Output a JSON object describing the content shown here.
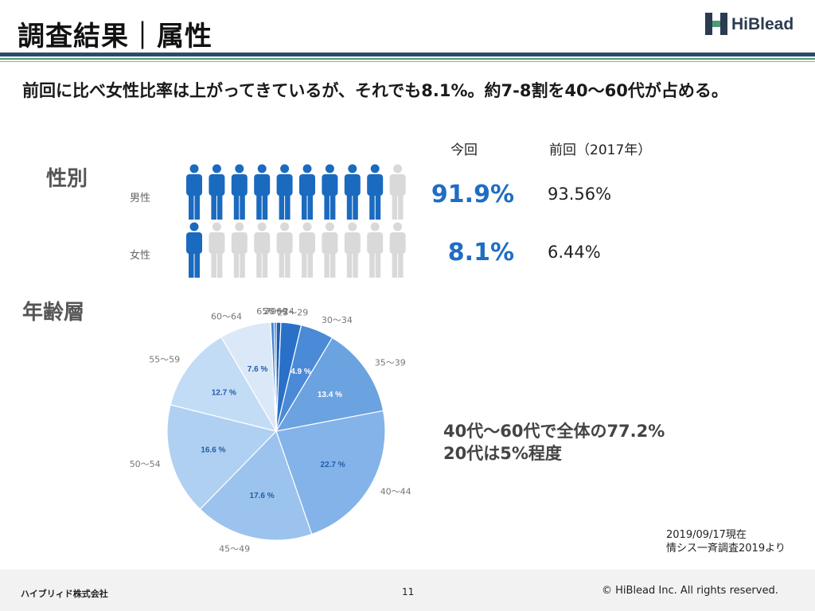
{
  "header": {
    "title": "調査結果｜属性",
    "logo_text": "HiBlead",
    "subtitle": "前回に比べ女性比率は上がってきているが、それでも8.1%。約7-8割を40〜60代が占める。"
  },
  "gender": {
    "section_label": "性別",
    "col_current": "今回",
    "col_previous": "前回（2017年）",
    "rows": [
      {
        "label": "男性",
        "current": "91.9%",
        "previous": "93.56%",
        "filled_icons": 9,
        "total_icons": 10
      },
      {
        "label": "女性",
        "current": "8.1%",
        "previous": "6.44%",
        "filled_icons": 1,
        "total_icons": 10
      }
    ]
  },
  "age": {
    "section_label": "年齢層",
    "callout_line1": "40代〜60代で全体の77.2%",
    "callout_line2": "20代は5%程度"
  },
  "chart_data": {
    "type": "pie",
    "categories": [
      "20〜24",
      "25〜29",
      "30〜34",
      "35〜39",
      "40〜44",
      "45〜49",
      "50〜54",
      "55〜59",
      "60〜64",
      "65〜69",
      "70〜"
    ],
    "values": [
      0.7,
      3.0,
      4.9,
      13.4,
      22.7,
      17.6,
      16.6,
      12.7,
      7.6,
      0.5,
      0.3
    ],
    "value_labels": [
      "",
      "",
      "4.9 %",
      "13.4 %",
      "22.7 %",
      "17.6 %",
      "16.6 %",
      "12.7 %",
      "7.6 %",
      "",
      ""
    ],
    "colors": [
      "#1a5fb4",
      "#2a70c8",
      "#4a8ad6",
      "#6ba2e0",
      "#83b3e8",
      "#9cc3ee",
      "#b0d0f2",
      "#c3dcf5",
      "#dbe8f8",
      "#3f80d0",
      "#1f63b8"
    ],
    "legend": "none"
  },
  "notes": {
    "date": "2019/09/17現在",
    "source": "情シス一斉調査2019より"
  },
  "footer": {
    "company": "ハイブリィド株式会社",
    "page": "11",
    "copyright": "© HiBlead Inc. All rights reserved."
  },
  "colors": {
    "accent": "#1f6dc4",
    "icon_filled": "#1a6ac0",
    "icon_empty": "#d9d9d9",
    "bar_navy": "#2b4b6e",
    "bar_green": "#4e9c74"
  }
}
